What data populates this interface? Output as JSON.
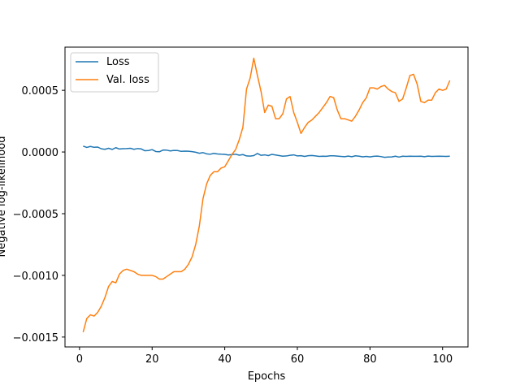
{
  "chart_data": {
    "type": "line",
    "title": "",
    "xlabel": "Epochs",
    "ylabel": "Negative log-likelihood",
    "xlim": [
      -4,
      107
    ],
    "ylim": [
      -0.00158,
      0.00085
    ],
    "xticks": [
      0,
      20,
      40,
      60,
      80,
      100
    ],
    "xtick_labels": [
      "0",
      "20",
      "40",
      "60",
      "80",
      "100"
    ],
    "yticks": [
      -0.0015,
      -0.001,
      -0.0005,
      0.0,
      0.0005
    ],
    "ytick_labels": [
      "−0.0015",
      "−0.0010",
      "−0.0005",
      "0.0000",
      "0.0005"
    ],
    "grid": false,
    "legend_position": "upper-left",
    "series": [
      {
        "name": "Loss",
        "color": "#1f77b4",
        "x": [
          1,
          2,
          3,
          4,
          5,
          6,
          7,
          8,
          9,
          10,
          11,
          12,
          13,
          14,
          15,
          16,
          17,
          18,
          19,
          20,
          21,
          22,
          23,
          24,
          25,
          26,
          27,
          28,
          29,
          30,
          31,
          32,
          33,
          34,
          35,
          36,
          37,
          38,
          39,
          40,
          41,
          42,
          43,
          44,
          45,
          46,
          47,
          48,
          49,
          50,
          51,
          52,
          53,
          54,
          55,
          56,
          57,
          58,
          59,
          60,
          61,
          62,
          63,
          64,
          65,
          66,
          67,
          68,
          69,
          70,
          71,
          72,
          73,
          74,
          75,
          76,
          77,
          78,
          79,
          80,
          81,
          82,
          83,
          84,
          85,
          86,
          87,
          88,
          89,
          90,
          91,
          92,
          93,
          94,
          95,
          96,
          97,
          98,
          99,
          100,
          101,
          102
        ],
        "y": [
          4.8e-05,
          3.7e-05,
          4.5e-05,
          3.8e-05,
          4e-05,
          2.6e-05,
          2.2e-05,
          3e-05,
          2.1e-05,
          3.5e-05,
          2.4e-05,
          2.7e-05,
          2.8e-05,
          3e-05,
          2.2e-05,
          2.8e-05,
          2.5e-05,
          1e-05,
          1.2e-05,
          1.9e-05,
          4e-06,
          2e-06,
          1.6e-05,
          1.5e-05,
          9e-06,
          1.3e-05,
          1.2e-05,
          5e-06,
          7e-06,
          6e-06,
          3e-06,
          -2e-06,
          -1e-05,
          -5e-06,
          -1.5e-05,
          -1.8e-05,
          -1.1e-05,
          -1.6e-05,
          -1.8e-05,
          -1.9e-05,
          -2.4e-05,
          -2.1e-05,
          -1.8e-05,
          -2.6e-05,
          -2.1e-05,
          -3.2e-05,
          -3.3e-05,
          -2.9e-05,
          -1.2e-05,
          -2.7e-05,
          -2.3e-05,
          -2.9e-05,
          -1.9e-05,
          -2.4e-05,
          -2.9e-05,
          -3.4e-05,
          -3.2e-05,
          -2.7e-05,
          -2.3e-05,
          -3.2e-05,
          -3e-05,
          -3.6e-05,
          -3e-05,
          -2.8e-05,
          -3.2e-05,
          -3.6e-05,
          -3.4e-05,
          -3.5e-05,
          -3.1e-05,
          -3.1e-05,
          -3.3e-05,
          -3.6e-05,
          -3.8e-05,
          -3.3e-05,
          -3.8e-05,
          -3.1e-05,
          -3.4e-05,
          -3.9e-05,
          -3.6e-05,
          -4e-05,
          -3.5e-05,
          -3.3e-05,
          -3.7e-05,
          -4.3e-05,
          -4.1e-05,
          -4e-05,
          -3.4e-05,
          -4.1e-05,
          -3.4e-05,
          -3.6e-05,
          -3.4e-05,
          -3.5e-05,
          -3.5e-05,
          -3.4e-05,
          -3.8e-05,
          -3.3e-05,
          -3.6e-05,
          -3.5e-05,
          -3.4e-05,
          -3.5e-05,
          -3.6e-05,
          -3.4e-05
        ]
      },
      {
        "name": "Val. loss",
        "color": "#ff7f0e",
        "x": [
          1,
          2,
          3,
          4,
          5,
          6,
          7,
          8,
          9,
          10,
          11,
          12,
          13,
          14,
          15,
          16,
          17,
          18,
          19,
          20,
          21,
          22,
          23,
          24,
          25,
          26,
          27,
          28,
          29,
          30,
          31,
          32,
          33,
          34,
          35,
          36,
          37,
          38,
          39,
          40,
          41,
          42,
          43,
          44,
          45,
          46,
          47,
          48,
          49,
          50,
          51,
          52,
          53,
          54,
          55,
          56,
          57,
          58,
          59,
          60,
          61,
          62,
          63,
          64,
          65,
          66,
          67,
          68,
          69,
          70,
          71,
          72,
          73,
          74,
          75,
          76,
          77,
          78,
          79,
          80,
          81,
          82,
          83,
          84,
          85,
          86,
          87,
          88,
          89,
          90,
          91,
          92,
          93,
          94,
          95,
          96,
          97,
          98,
          99,
          100,
          101,
          102
        ],
        "y": [
          -0.00146,
          -0.00135,
          -0.00132,
          -0.00133,
          -0.0013,
          -0.00125,
          -0.00118,
          -0.00109,
          -0.00105,
          -0.00106,
          -0.00099,
          -0.00096,
          -0.00095,
          -0.00096,
          -0.00097,
          -0.00099,
          -0.001,
          -0.001,
          -0.001,
          -0.001,
          -0.00101,
          -0.00103,
          -0.00103,
          -0.00101,
          -0.00099,
          -0.00097,
          -0.00097,
          -0.00097,
          -0.00095,
          -0.00091,
          -0.00085,
          -0.00075,
          -0.0006,
          -0.00038,
          -0.00026,
          -0.00019,
          -0.00016,
          -0.00016,
          -0.00013,
          -0.00012,
          -7e-05,
          -2e-05,
          2e-05,
          0.0001,
          0.0002,
          0.00051,
          0.0006,
          0.00076,
          0.00062,
          0.00049,
          0.00032,
          0.00038,
          0.00037,
          0.00027,
          0.00027,
          0.00031,
          0.00043,
          0.00045,
          0.00032,
          0.00024,
          0.00015,
          0.0002,
          0.00024,
          0.00026,
          0.00029,
          0.00032,
          0.00036,
          0.0004,
          0.00045,
          0.00044,
          0.00034,
          0.00027,
          0.00027,
          0.00026,
          0.00025,
          0.00029,
          0.00034,
          0.0004,
          0.00044,
          0.00052,
          0.00052,
          0.00051,
          0.00053,
          0.00054,
          0.00051,
          0.00049,
          0.00048,
          0.00041,
          0.00043,
          0.00052,
          0.00062,
          0.00063,
          0.00055,
          0.00041,
          0.0004,
          0.00042,
          0.00042,
          0.00048,
          0.00051,
          0.0005,
          0.00051,
          0.00058
        ]
      }
    ]
  }
}
